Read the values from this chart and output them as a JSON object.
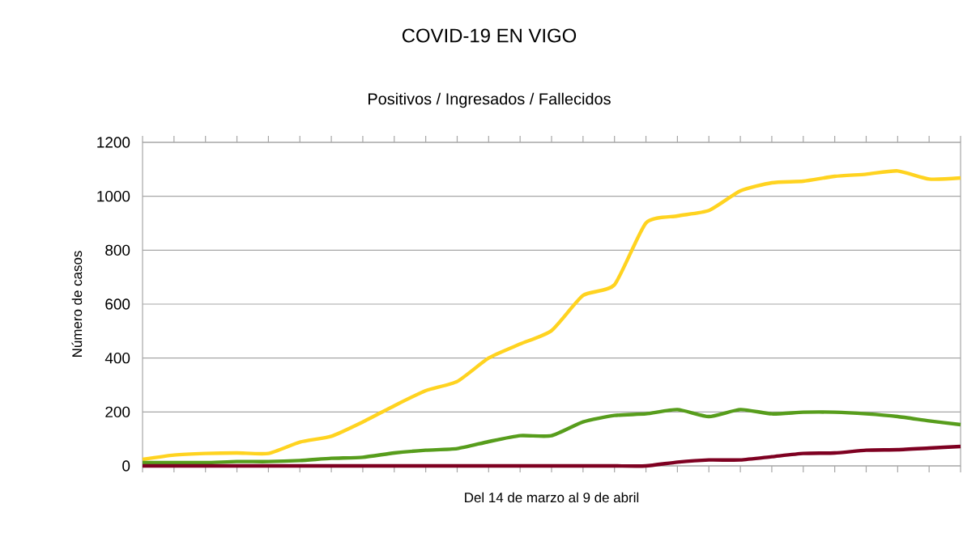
{
  "chart_data": {
    "type": "line",
    "title": "COVID-19 EN VIGO",
    "subtitle": "Positivos / Ingresados / Fallecidos",
    "xlabel": "Del 14 de marzo al 9 de abril",
    "ylabel": "Número de casos",
    "categories": [
      null,
      null,
      null,
      null,
      null,
      null,
      null,
      null,
      null,
      null,
      null,
      null,
      null,
      null,
      null,
      null,
      null,
      null,
      null,
      null,
      null,
      null,
      null,
      null,
      null,
      null,
      null
    ],
    "series": [
      {
        "color": "#ffd320",
        "values": [
          24,
          40,
          46,
          48,
          46,
          88,
          110,
          163,
          223,
          279,
          313,
          400,
          452,
          502,
          632,
          672,
          901,
          927,
          947,
          1020,
          1050,
          1056,
          1074,
          1082,
          1094,
          1064,
          1068
        ]
      },
      {
        "color": "#579d1c",
        "values": [
          12,
          12,
          12,
          16,
          16,
          20,
          28,
          32,
          48,
          58,
          64,
          90,
          112,
          112,
          163,
          187,
          193,
          209,
          183,
          209,
          193,
          199,
          199,
          193,
          183,
          167,
          153
        ]
      },
      {
        "color": "#7e0021",
        "values": [
          0,
          0,
          0,
          0,
          0,
          0,
          0,
          0,
          0,
          0,
          0,
          0,
          0,
          0,
          0,
          0,
          0,
          14,
          22,
          22,
          34,
          46,
          48,
          58,
          60,
          66,
          72
        ]
      }
    ],
    "ylim": [
      0,
      1200
    ],
    "yticks": [
      0,
      200,
      400,
      600,
      800,
      1000,
      1200
    ],
    "grid": "y",
    "tick_labels": "y",
    "marker": "none",
    "line_style": "solid"
  }
}
